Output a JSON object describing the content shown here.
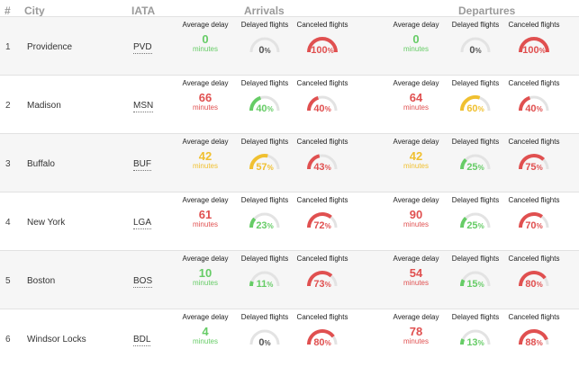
{
  "header": {
    "num": "#",
    "city": "City",
    "iata": "IATA",
    "arrivals": "Arrivals",
    "departures": "Departures"
  },
  "labels": {
    "avg_delay": "Average delay",
    "delayed": "Delayed flights",
    "canceled": "Canceled flights",
    "minutes": "minutes",
    "percent": "%"
  },
  "colors": {
    "green": "#66cc66",
    "yellow": "#f0c030",
    "red": "#e05050",
    "track": "#e3e3e3"
  },
  "rows": [
    {
      "num": "1",
      "city": "Providence",
      "iata": "PVD",
      "arrivals": {
        "avg": "0",
        "avg_color": "green",
        "delayed": 0,
        "canceled": 100
      },
      "departures": {
        "avg": "0",
        "avg_color": "green",
        "delayed": 0,
        "canceled": 100
      }
    },
    {
      "num": "2",
      "city": "Madison",
      "iata": "MSN",
      "arrivals": {
        "avg": "66",
        "avg_color": "red",
        "delayed": 40,
        "canceled": 40
      },
      "departures": {
        "avg": "64",
        "avg_color": "red",
        "delayed": 60,
        "canceled": 40
      }
    },
    {
      "num": "3",
      "city": "Buffalo",
      "iata": "BUF",
      "arrivals": {
        "avg": "42",
        "avg_color": "yellow",
        "delayed": 57,
        "canceled": 43
      },
      "departures": {
        "avg": "42",
        "avg_color": "yellow",
        "delayed": 25,
        "canceled": 75
      }
    },
    {
      "num": "4",
      "city": "New York",
      "iata": "LGA",
      "arrivals": {
        "avg": "61",
        "avg_color": "red",
        "delayed": 23,
        "canceled": 72
      },
      "departures": {
        "avg": "90",
        "avg_color": "red",
        "delayed": 25,
        "canceled": 70
      }
    },
    {
      "num": "5",
      "city": "Boston",
      "iata": "BOS",
      "arrivals": {
        "avg": "10",
        "avg_color": "green",
        "delayed": 11,
        "canceled": 73
      },
      "departures": {
        "avg": "54",
        "avg_color": "red",
        "delayed": 15,
        "canceled": 80
      }
    },
    {
      "num": "6",
      "city": "Windsor Locks",
      "iata": "BDL",
      "arrivals": {
        "avg": "4",
        "avg_color": "green",
        "delayed": 0,
        "canceled": 80
      },
      "departures": {
        "avg": "78",
        "avg_color": "red",
        "delayed": 13,
        "canceled": 88
      }
    }
  ]
}
